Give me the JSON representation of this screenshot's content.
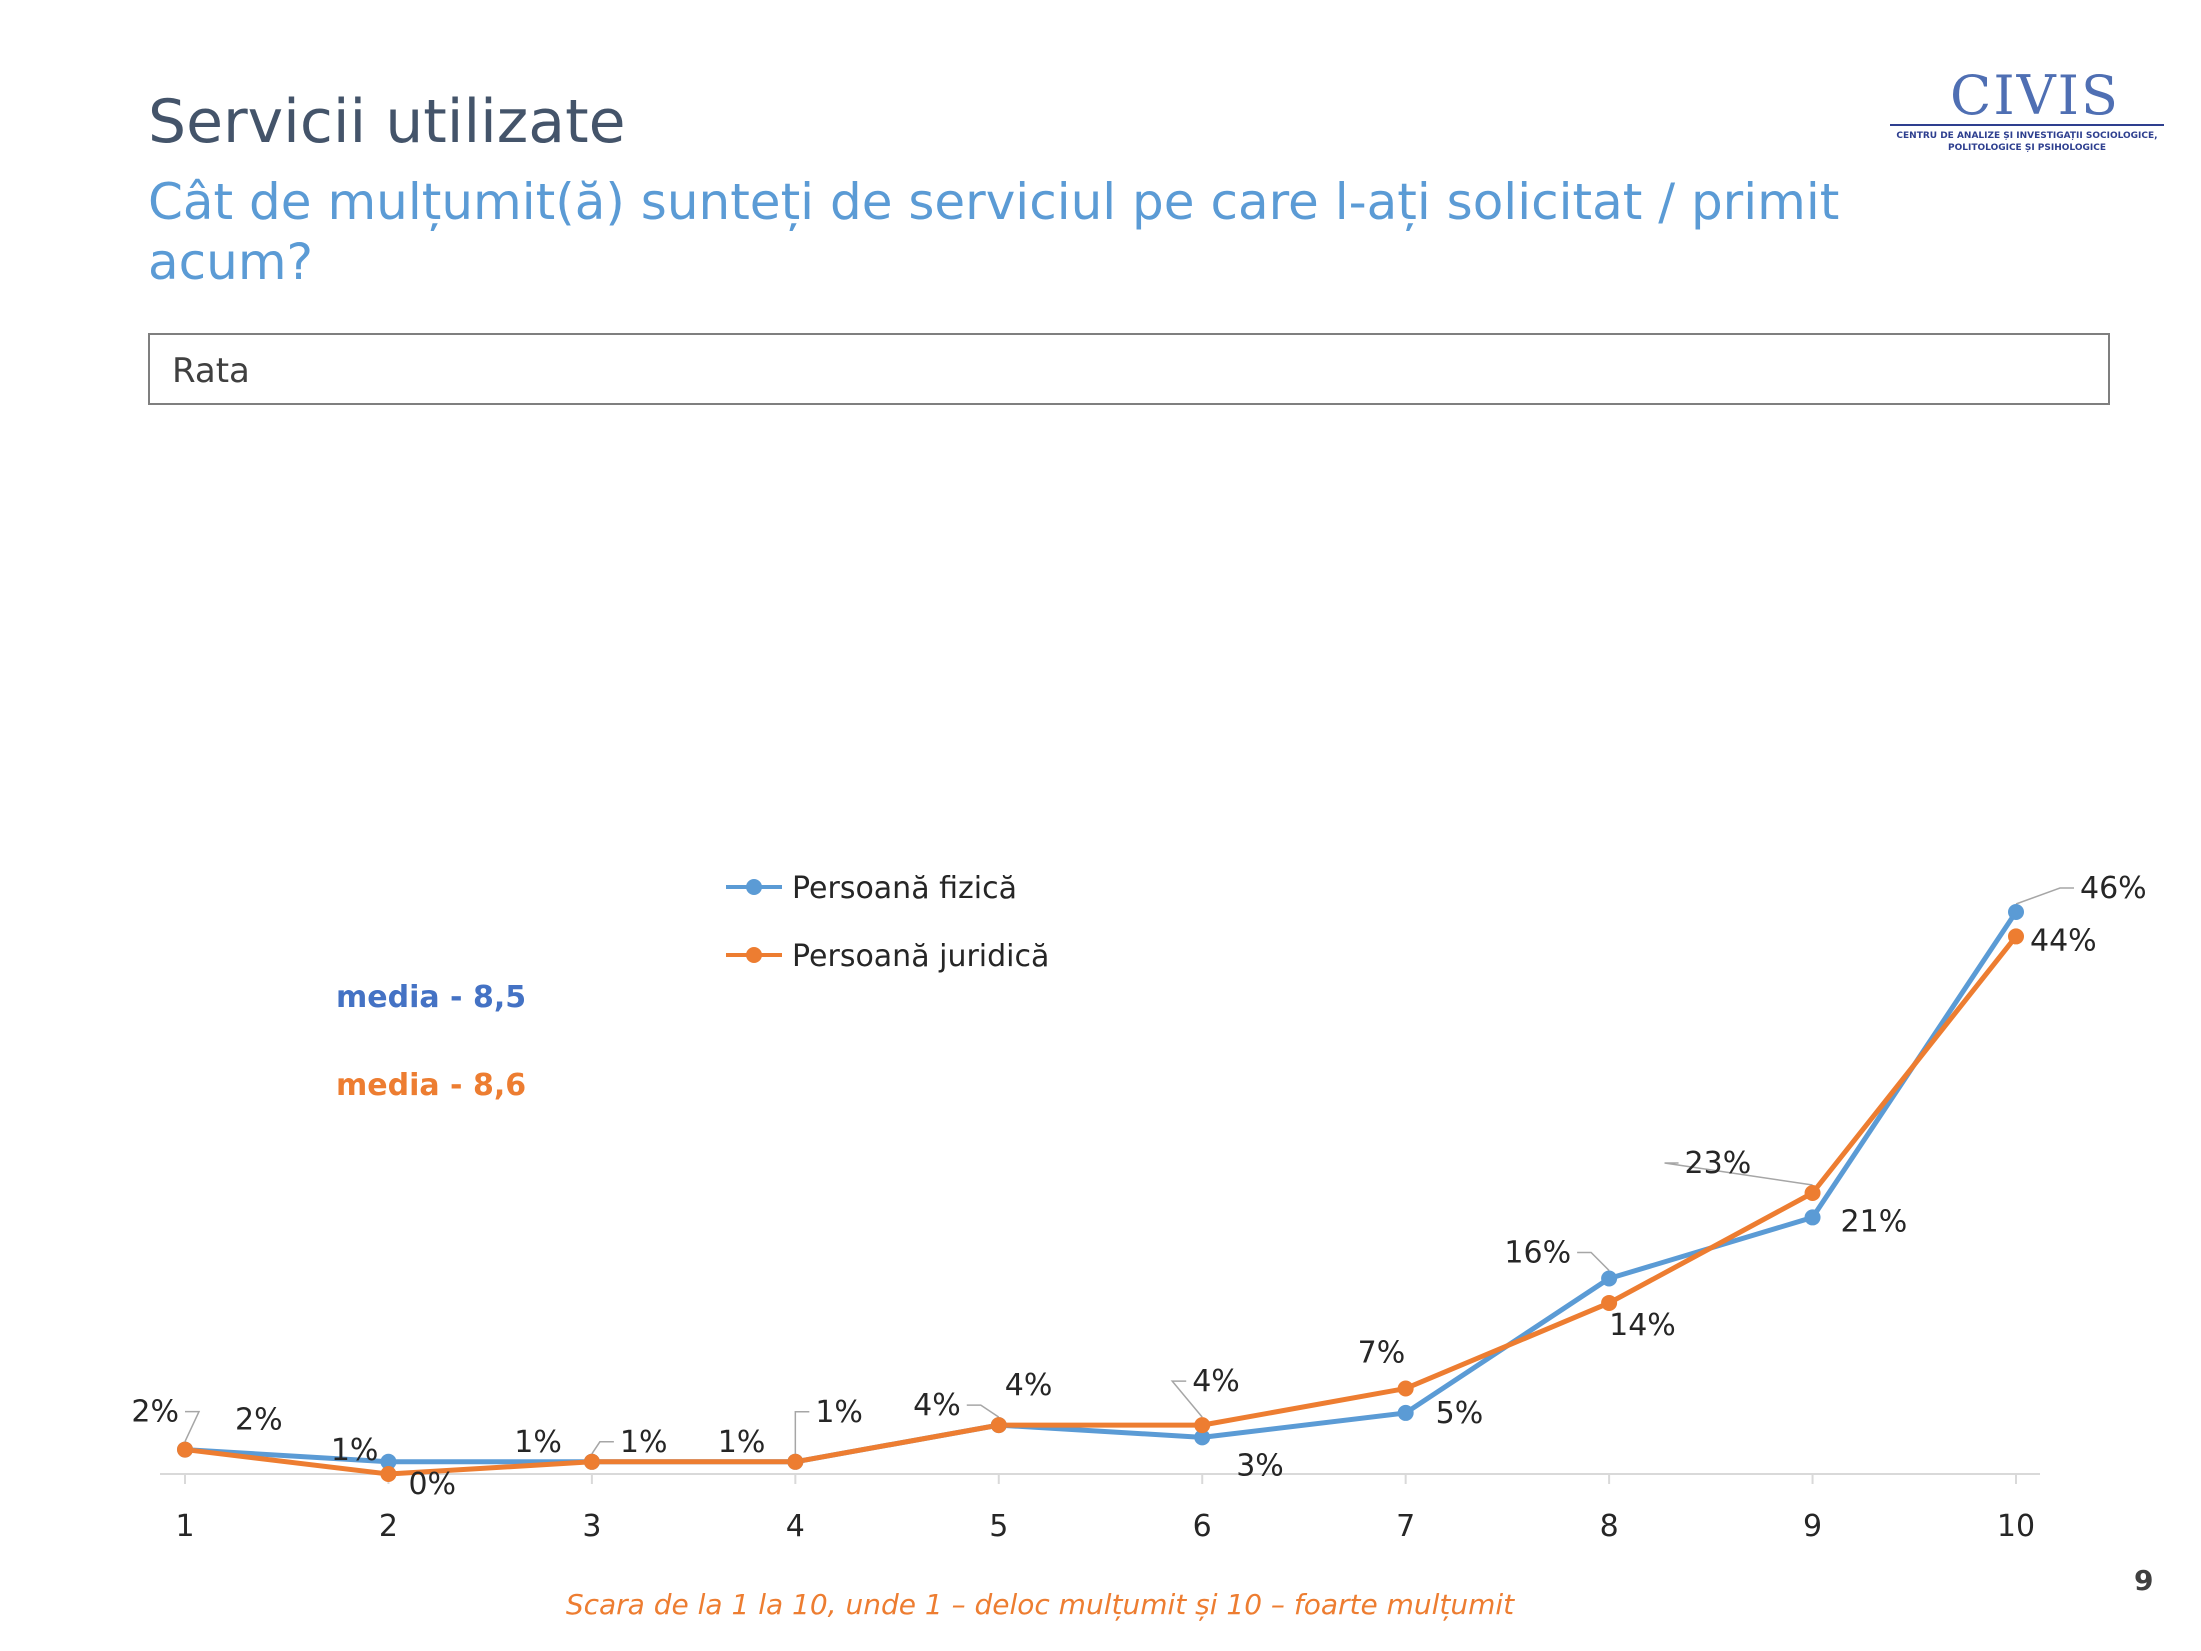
{
  "slide": {
    "title": "Servicii utilizate",
    "subtitle": "Cât de mulțumit(ă) sunteți de serviciul pe care l-ați solicitat / primit acum?",
    "box_label": "Rata",
    "page_number": "9"
  },
  "logo": {
    "name": "CIVIS",
    "subtitle_line1": "CENTRU DE ANALIZE ȘI INVESTIGAȚII SOCIOLOGICE,",
    "subtitle_line2": "POLITOLOGICE ȘI PSIHOLOGICE"
  },
  "colors": {
    "series1": "#5b9bd5",
    "series2": "#ed7d31",
    "media1_text": "#4472c4",
    "title": "#44546a",
    "subtitle": "#5b9bd5"
  },
  "chart_data": {
    "type": "line",
    "x": [
      1,
      2,
      3,
      4,
      5,
      6,
      7,
      8,
      9,
      10
    ],
    "series": [
      {
        "name": "Persoană fizică",
        "values": [
          2,
          1,
          1,
          1,
          4,
          3,
          5,
          16,
          21,
          46
        ],
        "labels": [
          "2%",
          "1%",
          "1%",
          "1%",
          "4%",
          "3%",
          "5%",
          "16%",
          "21%",
          "46%"
        ]
      },
      {
        "name": "Persoană juridică",
        "values": [
          2,
          0,
          1,
          1,
          4,
          4,
          7,
          14,
          23,
          44
        ],
        "labels": [
          "2%",
          "0%",
          "1%",
          "1%",
          "4%",
          "4%",
          "7%",
          "14%",
          "23%",
          "44%"
        ]
      }
    ],
    "ylim": [
      0,
      46
    ],
    "legend_position": "top-center",
    "grid": false,
    "annotations": {
      "media1": "media - 8,5",
      "media2": "media - 8,6",
      "caption": "Scara de la 1 la 10, unde 1 – deloc mulțumit și 10 – foarte mulțumit"
    }
  }
}
